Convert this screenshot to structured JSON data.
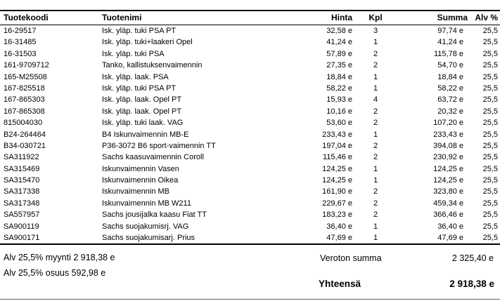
{
  "table": {
    "columns": [
      "Tuotekoodi",
      "Tuotenimi",
      "Hinta",
      "Kpl",
      "Summa",
      "Alv %"
    ],
    "rows": [
      {
        "code": "16-29517",
        "name": "Isk. yläp. tuki PSA PT",
        "price": "32,58 e",
        "qty": "3",
        "sum": "97,74 e",
        "vat": "25,5"
      },
      {
        "code": "16-31485",
        "name": "Isk. yläp. tuki+laakeri Opel",
        "price": "41,24 e",
        "qty": "1",
        "sum": "41,24 e",
        "vat": "25,5"
      },
      {
        "code": "16-31503",
        "name": "Isk. yläp. tuki PSA",
        "price": "57,89 e",
        "qty": "2",
        "sum": "115,78 e",
        "vat": "25,5"
      },
      {
        "code": "161-9709712",
        "name": "Tanko, kallistuksenvaimennin",
        "price": "27,35 e",
        "qty": "2",
        "sum": "54,70 e",
        "vat": "25,5"
      },
      {
        "code": "165-M25508",
        "name": "Isk. yläp. laak. PSA",
        "price": "18,84 e",
        "qty": "1",
        "sum": "18,84 e",
        "vat": "25,5"
      },
      {
        "code": "167-825518",
        "name": "Isk. yläp. tuki PSA PT",
        "price": "58,22 e",
        "qty": "1",
        "sum": "58,22 e",
        "vat": "25,5"
      },
      {
        "code": "167-865303",
        "name": "Isk. yläp. laak. Opel PT",
        "price": "15,93 e",
        "qty": "4",
        "sum": "63,72 e",
        "vat": "25,5"
      },
      {
        "code": "167-865308",
        "name": "Isk. yläp. laak. Opel PT",
        "price": "10,16 e",
        "qty": "2",
        "sum": "20,32 e",
        "vat": "25,5"
      },
      {
        "code": "815004030",
        "name": "Isk. yläp. tuki laak. VAG",
        "price": "53,60 e",
        "qty": "2",
        "sum": "107,20 e",
        "vat": "25,5"
      },
      {
        "code": "B24-264464",
        "name": "B4 Iskunvaimennin MB-E",
        "price": "233,43 e",
        "qty": "1",
        "sum": "233,43 e",
        "vat": "25,5"
      },
      {
        "code": "B34-030721",
        "name": "P36-3072 B6 sport-vaimennin TT",
        "price": "197,04 e",
        "qty": "2",
        "sum": "394,08 e",
        "vat": "25,5"
      },
      {
        "code": "SA311922",
        "name": "Sachs kaasuvaimennin Coroll",
        "price": "115,46 e",
        "qty": "2",
        "sum": "230,92 e",
        "vat": "25,5"
      },
      {
        "code": "SA315469",
        "name": "Iskunvaimennin Vasen",
        "price": "124,25 e",
        "qty": "1",
        "sum": "124,25 e",
        "vat": "25,5"
      },
      {
        "code": "SA315470",
        "name": "Iskunvaimennin Oikea",
        "price": "124,25 e",
        "qty": "1",
        "sum": "124,25 e",
        "vat": "25,5"
      },
      {
        "code": "SA317338",
        "name": "Iskunvaimennin MB",
        "price": "161,90 e",
        "qty": "2",
        "sum": "323,80 e",
        "vat": "25,5"
      },
      {
        "code": "SA317348",
        "name": "Iskunvaimennin MB W211",
        "price": "229,67 e",
        "qty": "2",
        "sum": "459,34 e",
        "vat": "25,5"
      },
      {
        "code": "SA557957",
        "name": "Sachs jousijalka kaasu Fiat TT",
        "price": "183,23 e",
        "qty": "2",
        "sum": "366,46 e",
        "vat": "25,5"
      },
      {
        "code": "SA900119",
        "name": "Sachs suojakumisrj. VAG",
        "price": "36,40 e",
        "qty": "1",
        "sum": "36,40 e",
        "vat": "25,5"
      },
      {
        "code": "SA900171",
        "name": "Sachs suojakumisarj. Prius",
        "price": "47,69 e",
        "qty": "1",
        "sum": "47,69 e",
        "vat": "25,5"
      }
    ]
  },
  "footer": {
    "vat_sales_line": "Alv 25,5% myynti 2 918,38 e",
    "vat_share_line": "Alv 25,5% osuus 592,98 e",
    "net_label": "Veroton summa",
    "net_value": "2 325,40 e",
    "total_label": "Yhteensä",
    "total_value": "2 918,38 e"
  },
  "colors": {
    "text": "#000000",
    "border": "#000000",
    "background": "#ffffff"
  }
}
